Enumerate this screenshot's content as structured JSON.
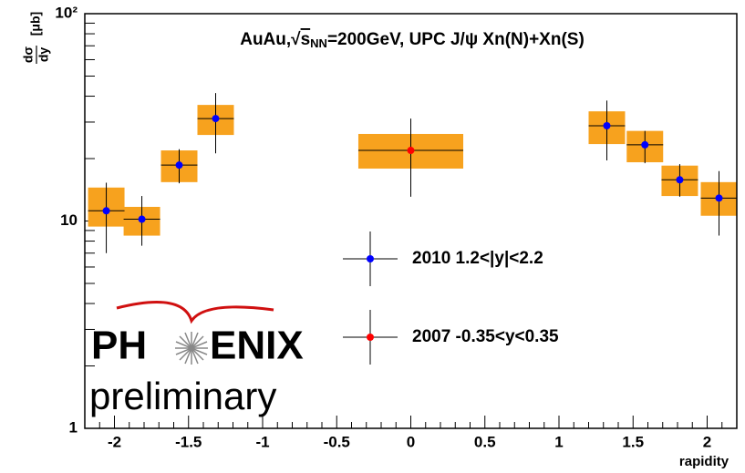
{
  "chart_data": {
    "type": "errorbar",
    "title": [
      "AuAu,√",
      "s",
      "NN",
      "=200GeV, UPC J/ψ Xn(N)+Xn(S)"
    ],
    "ylabel": {
      "numerator": "dσ",
      "denominator": "dy",
      "unit": "[μb]"
    },
    "xlabel": "rapidity",
    "xlim": [
      -2.2,
      2.2
    ],
    "ylim": [
      1,
      100
    ],
    "log_y": true,
    "xticks": [
      -2,
      -1.5,
      -1,
      -0.5,
      0,
      0.5,
      1,
      1.5,
      2
    ],
    "yticks": [
      1,
      10,
      {
        "value": 100,
        "label": "10²"
      }
    ],
    "yminor_ticks": [
      2,
      3,
      4,
      5,
      6,
      7,
      8,
      9,
      20,
      30,
      40,
      50,
      60,
      70,
      80,
      90
    ],
    "xminor_ticks": [
      -2.1,
      -1.9,
      -1.8,
      -1.7,
      -1.6,
      -1.4,
      -1.3,
      -1.2,
      -1.1,
      -0.9,
      -0.8,
      -0.7,
      -0.6,
      -0.4,
      -0.3,
      -0.2,
      -0.1,
      0.1,
      0.2,
      0.3,
      0.4,
      0.6,
      0.7,
      0.8,
      0.9,
      1.1,
      1.2,
      1.3,
      1.4,
      1.6,
      1.7,
      1.8,
      1.9,
      2.1
    ],
    "sys_color": "#f7a21e",
    "series": [
      {
        "name": "2010 1.2<|y|<2.2",
        "color": "#0000ff",
        "x": [
          -2.055,
          -1.815,
          -1.563,
          -1.317,
          1.323,
          1.58,
          1.815,
          2.08
        ],
        "values": [
          11.2,
          10.2,
          18.6,
          31.2,
          28.8,
          23.3,
          15.8,
          12.9
        ],
        "stat_low": [
          7.0,
          7.6,
          15.2,
          21.2,
          19.6,
          19.0,
          13.1,
          8.5
        ],
        "stat_high": [
          15.3,
          13.2,
          22.2,
          41.4,
          38.1,
          27.2,
          18.8,
          17.4
        ],
        "xerr": [
          0.123,
          0.123,
          0.123,
          0.123,
          0.123,
          0.123,
          0.123,
          0.123
        ],
        "sys_low": [
          9.4,
          8.5,
          15.4,
          26.0,
          23.5,
          19.2,
          13.2,
          10.6
        ],
        "sys_high": [
          14.5,
          11.7,
          21.9,
          36.3,
          33.8,
          27.2,
          18.5,
          15.4
        ]
      },
      {
        "name": "2007 -0.35<y<0.35",
        "color": "#ff0000",
        "x": [
          0
        ],
        "values": [
          21.9
        ],
        "stat_low": [
          13.1
        ],
        "stat_high": [
          31.2
        ],
        "xerr": [
          0.354
        ],
        "sys_low": [
          17.9
        ],
        "sys_high": [
          26.3
        ]
      }
    ],
    "logo": {
      "left": "PH",
      "right": "ENIX",
      "subtitle": "preliminary"
    }
  }
}
